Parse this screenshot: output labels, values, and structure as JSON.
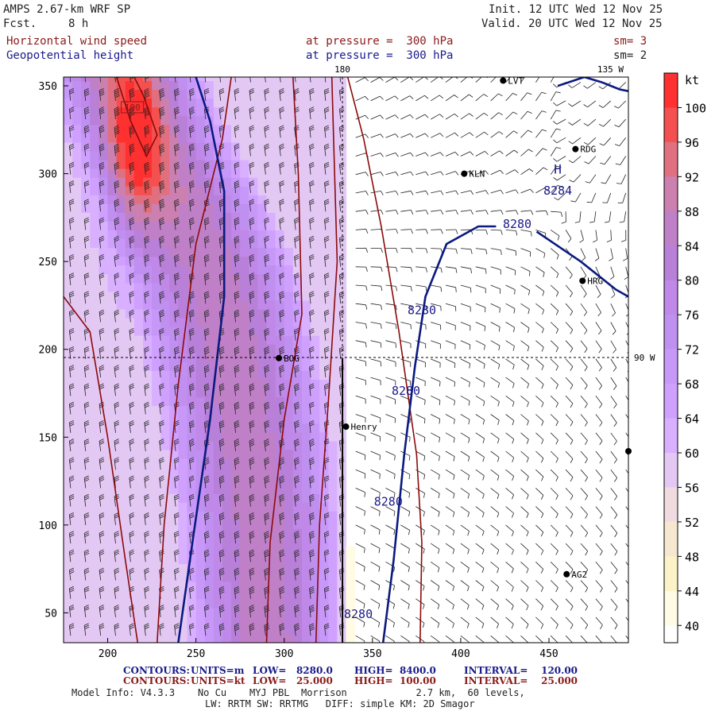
{
  "header": {
    "model": "AMPS 2.67-km WRF SP",
    "fcst_label": "Fcst.",
    "fcst_value": "8 h",
    "init": "Init. 12 UTC Wed 12 Nov 25",
    "valid": "Valid. 20 UTC Wed 12 Nov 25",
    "field1": "Horizontal wind speed",
    "field2": "Geopotential height",
    "pressure1": "at pressure =  300 hPa",
    "pressure2": "at pressure =  300 hPa",
    "sm1": "sm= 3",
    "sm2": "sm= 2"
  },
  "map_labels": {
    "lon180": "180",
    "lon135": "135 W",
    "lon90": "90 W"
  },
  "stations": [
    {
      "name": "LVT",
      "x": 424,
      "y": 353
    },
    {
      "name": "RDG",
      "x": 465,
      "y": 314
    },
    {
      "name": "KLN",
      "x": 402,
      "y": 300
    },
    {
      "name": "HRG",
      "x": 469,
      "y": 239
    },
    {
      "name": "BOG",
      "x": 297,
      "y": 195
    },
    {
      "name": "Henry",
      "x": 335,
      "y": 156
    },
    {
      "name": "AG2",
      "x": 460,
      "y": 72
    },
    {
      "name": "",
      "x": 495,
      "y": 142
    }
  ],
  "colorbar": {
    "unit": "kt",
    "ticks": [
      "100",
      "96",
      "92",
      "88",
      "84",
      "80",
      "76",
      "72",
      "68",
      "64",
      "60",
      "56",
      "52",
      "48",
      "44",
      "40"
    ],
    "colors": [
      "#ff3030",
      "#f55050",
      "#e07080",
      "#cc80b0",
      "#c080c8",
      "#b880d8",
      "#c088e8",
      "#c090f0",
      "#c898f8",
      "#d0a0ff",
      "#d8b0ff",
      "#e4c8f4",
      "#f0dce0",
      "#f6e8d0",
      "#fcf2c8",
      "#fffbe4"
    ]
  },
  "contour_labels": {
    "high_center": "H",
    "high_value": "8284",
    "h8280_a": "8280",
    "h8280_b": "8280",
    "h8280_c": "8280",
    "h8280_d": "8280",
    "h8280_e": "8280",
    "speed100": "100"
  },
  "chart_data": {
    "type": "heatmap",
    "title": "Horizontal wind speed (kt) and Geopotential height (m) at 300 hPa",
    "xlim": [
      175,
      495
    ],
    "ylim": [
      33,
      355
    ],
    "x_ticks": [
      200,
      250,
      300,
      350,
      400,
      450
    ],
    "y_ticks": [
      50,
      100,
      150,
      200,
      250,
      300,
      350
    ],
    "x_tick_labels": [
      "200",
      "250",
      "300",
      "350",
      "400",
      "450"
    ],
    "y_tick_labels": [
      "50",
      "100",
      "150",
      "200",
      "250",
      "300",
      "350"
    ],
    "colorbar_range_kt": [
      38,
      104
    ],
    "jet_axis": [
      {
        "y": 355,
        "core": 210,
        "halfwidth": 70
      },
      {
        "y": 320,
        "core": 224,
        "halfwidth": 72
      },
      {
        "y": 280,
        "core": 244,
        "halfwidth": 74
      },
      {
        "y": 240,
        "core": 260,
        "halfwidth": 76
      },
      {
        "y": 200,
        "core": 270,
        "halfwidth": 76
      },
      {
        "y": 160,
        "core": 278,
        "halfwidth": 74
      },
      {
        "y": 120,
        "core": 284,
        "halfwidth": 72
      },
      {
        "y": 80,
        "core": 288,
        "halfwidth": 70
      },
      {
        "y": 33,
        "core": 290,
        "halfwidth": 68
      }
    ],
    "wind_max_center": {
      "x": 215,
      "y": 315,
      "speed": 100
    },
    "height_contours": [
      {
        "level": 8280,
        "points": [
          [
            240,
            33
          ],
          [
            248,
            90
          ],
          [
            258,
            160
          ],
          [
            266,
            230
          ],
          [
            266,
            290
          ],
          [
            258,
            330
          ],
          [
            250,
            355
          ]
        ]
      },
      {
        "level": 8280,
        "points": [
          [
            356,
            33
          ],
          [
            362,
            80
          ],
          [
            368,
            140
          ],
          [
            374,
            190
          ],
          [
            380,
            230
          ],
          [
            392,
            260
          ],
          [
            410,
            270
          ],
          [
            420,
            270
          ]
        ]
      },
      {
        "level": 8280,
        "points": [
          [
            443,
            267
          ],
          [
            468,
            250
          ],
          [
            488,
            234
          ],
          [
            495,
            230
          ]
        ]
      },
      {
        "level": 8280,
        "points": [
          [
            455,
            350
          ],
          [
            470,
            355
          ],
          [
            480,
            352
          ],
          [
            490,
            348
          ],
          [
            495,
            347
          ]
        ]
      }
    ],
    "speed_contours": [
      {
        "level": 25,
        "points": [
          [
            175,
            230
          ],
          [
            190,
            210
          ],
          [
            200,
            150
          ],
          [
            210,
            80
          ],
          [
            217,
            33
          ]
        ]
      },
      {
        "level": 50,
        "points": [
          [
            228,
            33
          ],
          [
            232,
            100
          ],
          [
            240,
            180
          ],
          [
            250,
            260
          ],
          [
            265,
            320
          ],
          [
            270,
            355
          ]
        ]
      },
      {
        "level": 75,
        "points": [
          [
            290,
            33
          ],
          [
            292,
            90
          ],
          [
            300,
            160
          ],
          [
            310,
            220
          ],
          [
            308,
            300
          ],
          [
            305,
            355
          ]
        ]
      },
      {
        "level": 75,
        "points": [
          [
            318,
            33
          ],
          [
            320,
            100
          ],
          [
            325,
            170
          ],
          [
            330,
            250
          ],
          [
            328,
            320
          ],
          [
            327,
            355
          ]
        ]
      },
      {
        "level": 100,
        "points": [
          [
            205,
            355
          ],
          [
            213,
            330
          ],
          [
            222,
            310
          ],
          [
            228,
            322
          ],
          [
            220,
            345
          ],
          [
            215,
            355
          ]
        ]
      },
      {
        "level": 25,
        "points": [
          [
            336,
            355
          ],
          [
            345,
            320
          ],
          [
            355,
            270
          ],
          [
            365,
            210
          ],
          [
            375,
            140
          ],
          [
            378,
            90
          ],
          [
            377,
            33
          ]
        ]
      }
    ],
    "contour_info_height": {
      "units": "m",
      "low": "8280.0",
      "high": "8400.0",
      "interval": "120.00"
    },
    "contour_info_speed": {
      "units": "kt",
      "low": "25.000",
      "high": "100.00",
      "interval": "25.000"
    }
  },
  "footer": {
    "c1_label": "CONTOURS:",
    "c1_units": "UNITS=m",
    "c1_low": "LOW=   8280.0",
    "c1_high": "HIGH=  8400.0",
    "c1_int": "INTERVAL=    120.00",
    "c2_label": "CONTOURS:",
    "c2_units": "UNITS=kt",
    "c2_low": "LOW=   25.000",
    "c2_high": "HIGH=  100.00",
    "c2_int": "INTERVAL=    25.000",
    "model_info": "Model Info: V4.3.3    No Cu    MYJ PBL  Morrison            2.7 km,  60 levels,",
    "model_info2": "LW: RRTM SW: RRTMG   DIFF: simple KM: 2D Smagor"
  }
}
